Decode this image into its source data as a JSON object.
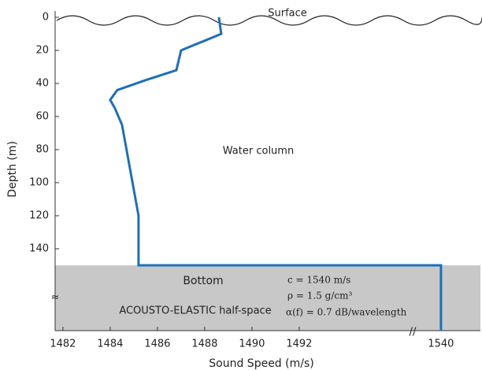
{
  "chart_data": {
    "type": "line",
    "xlabel": "Sound Speed (m/s)",
    "ylabel": "Depth (m)",
    "xlim": [
      1481.67,
      1541.67
    ],
    "xticks": [
      1482,
      1484,
      1486,
      1488,
      1490,
      1492,
      1540
    ],
    "axis_break": [
      1494,
      1538
    ],
    "ylim": [
      -3.8,
      189.5
    ],
    "yticks": [
      0,
      20,
      40,
      60,
      80,
      100,
      120,
      140
    ],
    "y_inverted": true,
    "series": [
      {
        "color": "#1f6fb5",
        "x": [
          1488.6,
          1488.7,
          1487.0,
          1486.9,
          1486.8,
          1485.5,
          1484.3,
          1484.0,
          1484.2,
          1484.5,
          1485.2,
          1485.2,
          1540,
          1540
        ],
        "values": [
          0,
          10,
          20,
          26,
          32,
          38,
          44,
          50,
          55,
          65,
          120,
          150,
          150,
          189.5
        ]
      }
    ],
    "annotations": {
      "surface": "Surface",
      "water": "Water column",
      "bottom": "Bottom",
      "halfspace": "ACOUSTO-ELASTIC half-space",
      "c": "c = 1540 m/s",
      "rho": "ρ = 1.5 g/cm³",
      "alpha": "α(f) = 0.7 dB/wavelength"
    }
  }
}
